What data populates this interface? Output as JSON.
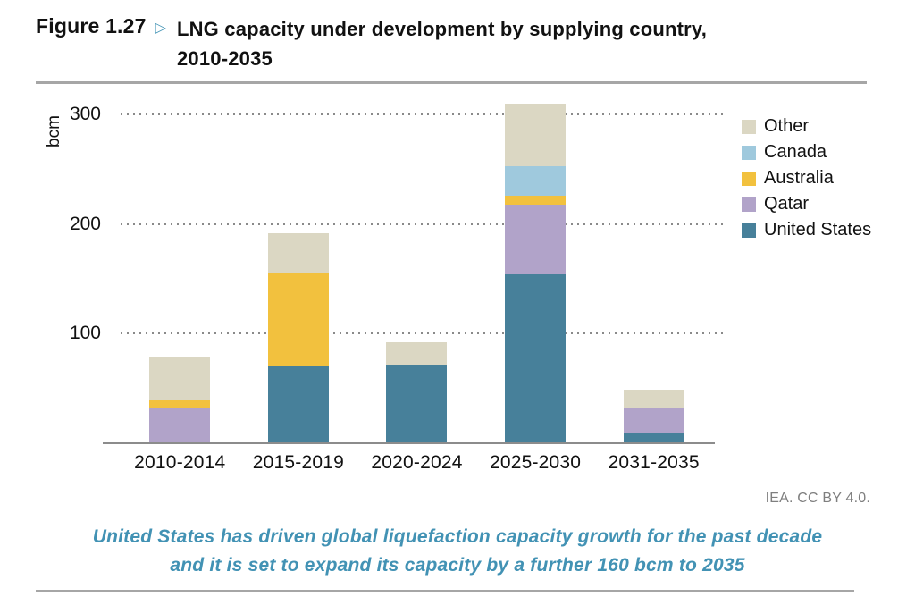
{
  "header": {
    "figure_label": "Figure 1.27",
    "arrow_glyph": "▷",
    "title_line1": "LNG capacity under development by supplying country,",
    "title_line2": "2010-2035"
  },
  "chart_data": {
    "type": "bar",
    "stacked": true,
    "title": "LNG capacity under development by supplying country, 2010-2035",
    "ylabel": "bcm",
    "xlabel": "",
    "categories": [
      "2010-2014",
      "2015-2019",
      "2020-2024",
      "2025-2030",
      "2031-2035"
    ],
    "series": [
      {
        "name": "United States",
        "color": "#47809A",
        "values": [
          0,
          70,
          72,
          154,
          10
        ]
      },
      {
        "name": "Qatar",
        "color": "#B1A3C9",
        "values": [
          32,
          0,
          0,
          64,
          22
        ]
      },
      {
        "name": "Australia",
        "color": "#F2C13E",
        "values": [
          7,
          85,
          0,
          8,
          0
        ]
      },
      {
        "name": "Canada",
        "color": "#9FC9DD",
        "values": [
          0,
          0,
          0,
          27,
          0
        ]
      },
      {
        "name": "Other",
        "color": "#DBD7C3",
        "values": [
          40,
          37,
          20,
          57,
          17
        ]
      }
    ],
    "totals": [
      79,
      192,
      92,
      310,
      49
    ],
    "y_ticks": [
      100,
      200,
      300
    ],
    "ylim": [
      0,
      323
    ],
    "grid": "dotted-horizontal",
    "legend_position": "right",
    "legend_order": [
      "Other",
      "Canada",
      "Australia",
      "Qatar",
      "United States"
    ]
  },
  "footer": {
    "attribution": "IEA. CC BY 4.0.",
    "caption_line1": "United States has driven global liquefaction capacity growth for the past decade",
    "caption_line2": "and it is set to expand its capacity by a further 160 bcm to 2035"
  },
  "theme": {
    "accent_teal": "#4193B5",
    "caption_teal": "#4292B4",
    "rule_gray": "#A6A6A6",
    "attribution_gray": "#7F7F7F"
  }
}
